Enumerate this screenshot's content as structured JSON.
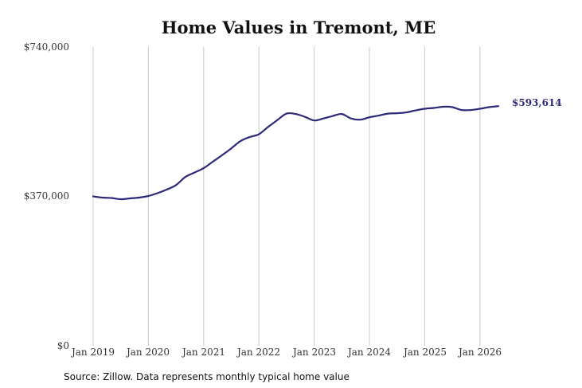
{
  "colors": {
    "line": "#2e2a7a",
    "grid": "#c8c8c8",
    "text": "#333333"
  },
  "chart_data": {
    "type": "line",
    "title": "Home Values in Tremont, ME",
    "xlabel": "",
    "ylabel": "",
    "x_tick_labels": [
      "Jan 2019",
      "Jan 2020",
      "Jan 2021",
      "Jan 2022",
      "Jan 2023",
      "Jan 2024",
      "Jan 2025",
      "Jan 2026"
    ],
    "y_tick_labels": [
      "$740,000",
      "$370,000",
      "$0"
    ],
    "ylim": [
      0,
      740000
    ],
    "xlim": [
      "2019-01",
      "2026-06"
    ],
    "grid": "vertical",
    "last_value_label": "$593,614",
    "series": [
      {
        "x": [
          "2019-01",
          "2019-03",
          "2019-05",
          "2019-07",
          "2019-09",
          "2019-11",
          "2020-01",
          "2020-03",
          "2020-05",
          "2020-07",
          "2020-09",
          "2020-11",
          "2021-01",
          "2021-03",
          "2021-05",
          "2021-07",
          "2021-09",
          "2021-11",
          "2022-01",
          "2022-03",
          "2022-05",
          "2022-07",
          "2022-09",
          "2022-11",
          "2023-01",
          "2023-03",
          "2023-05",
          "2023-07",
          "2023-09",
          "2023-11",
          "2024-01",
          "2024-03",
          "2024-05",
          "2024-07",
          "2024-09",
          "2024-11",
          "2025-01",
          "2025-03",
          "2025-05",
          "2025-07",
          "2025-09",
          "2025-11",
          "2026-01",
          "2026-03",
          "2026-05"
        ],
        "values": [
          370000,
          367000,
          366000,
          363000,
          365000,
          367000,
          371000,
          378000,
          387000,
          398000,
          418000,
          429000,
          440000,
          456000,
          472000,
          489000,
          507000,
          517000,
          524000,
          542000,
          559000,
          575000,
          574000,
          567000,
          558000,
          563000,
          569000,
          574000,
          563000,
          560000,
          566000,
          570000,
          575000,
          576000,
          578000,
          583000,
          587000,
          589000,
          592000,
          591000,
          584000,
          584000,
          587000,
          591000,
          593614
        ]
      }
    ]
  },
  "source_text": "Source: Zillow. Data represents monthly typical home value"
}
